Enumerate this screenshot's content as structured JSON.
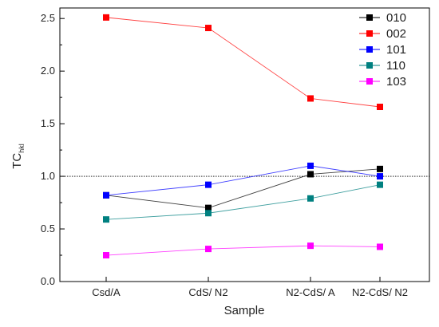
{
  "chart_data": {
    "type": "line",
    "categories": [
      "Csd/A",
      "CdS/ N2",
      "N2-CdS/ A",
      "N2-CdS/ N2"
    ],
    "series": [
      {
        "name": "010",
        "color": "#000000",
        "values": [
          0.82,
          0.7,
          1.02,
          1.07
        ]
      },
      {
        "name": "002",
        "color": "#ff0000",
        "values": [
          2.51,
          2.41,
          1.74,
          1.66
        ]
      },
      {
        "name": "101",
        "color": "#0000ff",
        "values": [
          0.82,
          0.92,
          1.1,
          1.0
        ]
      },
      {
        "name": "110",
        "color": "#008080",
        "values": [
          0.59,
          0.65,
          0.79,
          0.92
        ]
      },
      {
        "name": "103",
        "color": "#ff00ff",
        "values": [
          0.25,
          0.31,
          0.34,
          0.33
        ]
      }
    ],
    "xlabel": "Sample",
    "ylabel": "TC",
    "ylabel_sub": "hkl",
    "ylim": [
      0.0,
      2.6
    ],
    "yticks": [
      "0.0",
      "0.5",
      "1.0",
      "1.5",
      "2.0",
      "2.5"
    ],
    "reference_line": 1.0,
    "legend_position": "top-right",
    "grid": false
  }
}
